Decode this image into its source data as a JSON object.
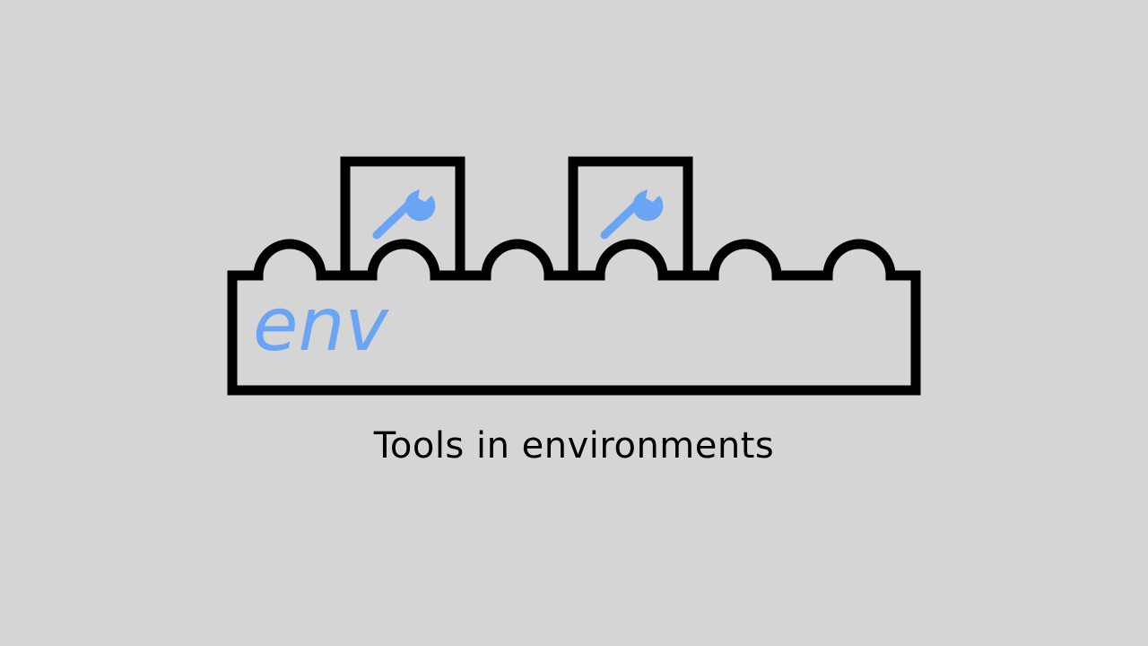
{
  "colors": {
    "background": "#d5d5d5",
    "stroke": "#000000",
    "accent": "#6aa4f4"
  },
  "diagram": {
    "base_label": "env",
    "tool_icon": "wrench-icon",
    "tool_slot_count": 2,
    "stud_count": 6
  },
  "caption": "Tools in environments"
}
